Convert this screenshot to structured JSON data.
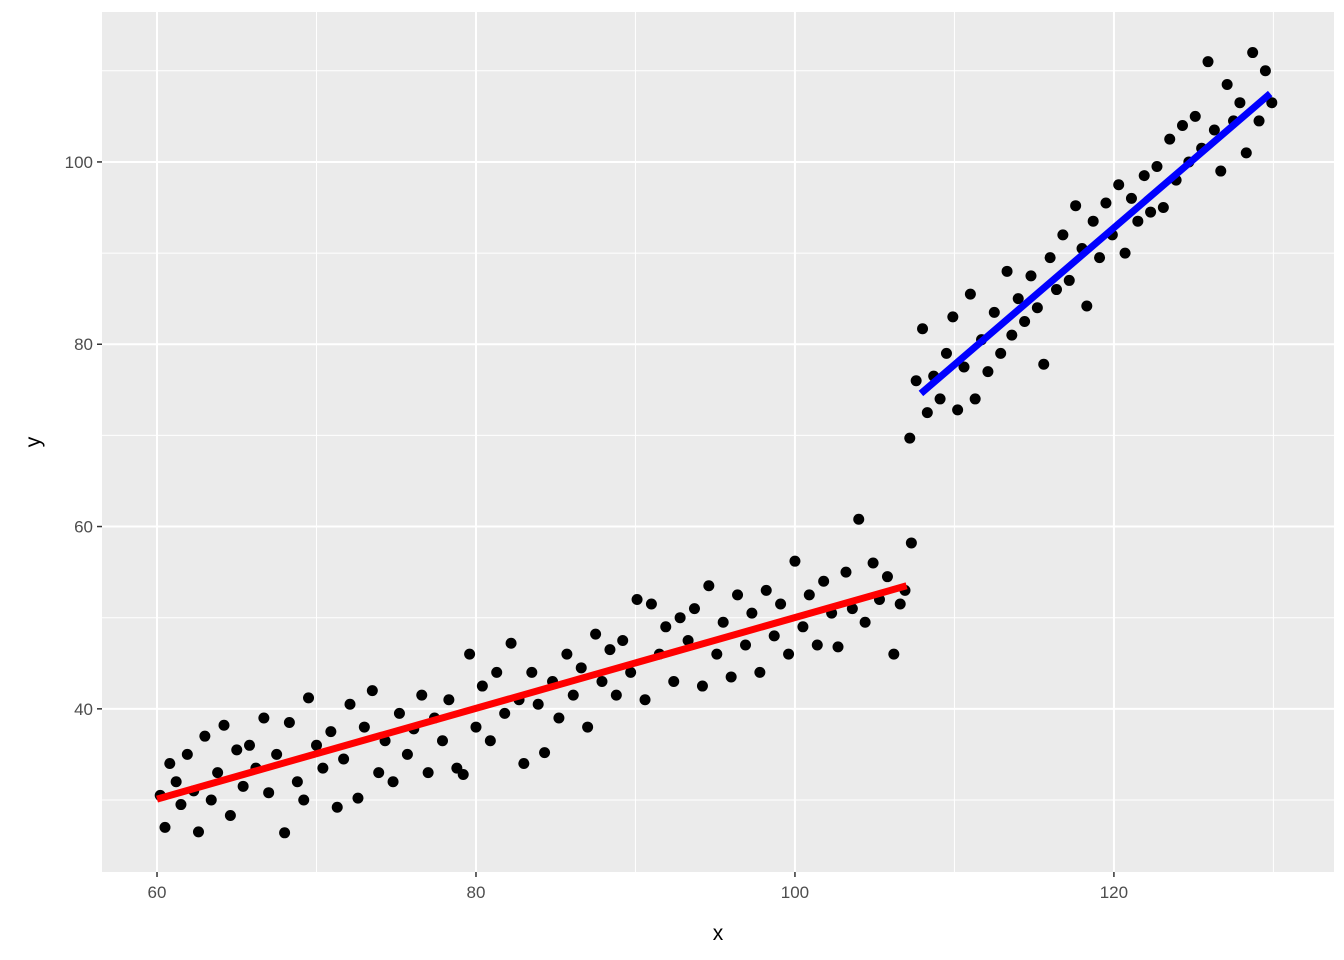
{
  "chart_data": {
    "type": "scatter",
    "x_label": "x",
    "y_label": "y",
    "xlim": [
      56.55,
      133.8
    ],
    "ylim": [
      22.1,
      116.45
    ],
    "xticks": [
      60,
      80,
      100,
      120
    ],
    "yticks": [
      40,
      60,
      80,
      100
    ],
    "xminor": [
      70,
      90,
      110,
      130
    ],
    "yminor": [
      30,
      50,
      70,
      90,
      110
    ],
    "grid": true,
    "panel_color": "#ebebeb",
    "points": {
      "color": "#000000",
      "x": [
        60.2,
        60.5,
        60.8,
        61.2,
        61.5,
        61.9,
        62.3,
        62.6,
        63,
        63.4,
        63.8,
        64.2,
        64.6,
        65,
        65.4,
        65.8,
        66.2,
        66.7,
        67,
        67.5,
        68,
        68.3,
        68.8,
        69.2,
        69.5,
        70,
        70.4,
        70.9,
        71.3,
        71.7,
        72.1,
        72.6,
        73,
        73.5,
        73.9,
        74.3,
        74.8,
        75.2,
        75.7,
        76.1,
        76.6,
        77,
        77.4,
        77.9,
        78.3,
        78.8,
        79.2,
        79.6,
        80,
        80.4,
        80.9,
        81.3,
        81.8,
        82.2,
        82.7,
        83,
        83.5,
        83.9,
        84.3,
        84.8,
        85.2,
        85.7,
        86.1,
        86.6,
        87,
        87.5,
        87.9,
        88.4,
        88.8,
        89.2,
        89.7,
        90.1,
        90.6,
        91,
        91.5,
        91.9,
        92.4,
        92.8,
        93.3,
        93.7,
        94.2,
        94.6,
        95.1,
        95.5,
        96,
        96.4,
        96.9,
        97.3,
        97.8,
        98.2,
        98.7,
        99.1,
        99.6,
        100,
        100.5,
        100.9,
        101.4,
        101.8,
        102.3,
        102.7,
        103.2,
        103.6,
        104,
        104.4,
        104.9,
        105.3,
        105.8,
        106.2,
        106.6,
        106.9,
        107.2,
        107.3,
        107.6,
        108,
        108.3,
        108.7,
        109.1,
        109.5,
        109.9,
        110.2,
        110.6,
        111,
        111.3,
        111.7,
        112.1,
        112.5,
        112.9,
        113.3,
        113.6,
        114,
        114.4,
        114.8,
        115.2,
        115.6,
        116,
        116.4,
        116.8,
        117.2,
        117.6,
        118,
        118.3,
        118.7,
        119.1,
        119.5,
        119.9,
        120.3,
        120.7,
        121.1,
        121.5,
        121.9,
        122.3,
        122.7,
        123.1,
        123.5,
        123.9,
        124.3,
        124.7,
        125.1,
        125.5,
        125.9,
        126.3,
        126.7,
        127.1,
        127.5,
        127.9,
        128.3,
        128.7,
        129.1,
        129.5,
        129.9
      ],
      "y": [
        30.5,
        27,
        34,
        32,
        29.5,
        35,
        31,
        26.5,
        37,
        30,
        33,
        38.2,
        28.3,
        35.5,
        31.5,
        36,
        33.5,
        39,
        30.8,
        35,
        26.4,
        38.5,
        32,
        30,
        41.2,
        36,
        33.5,
        37.5,
        29.2,
        34.5,
        40.5,
        30.2,
        38,
        42,
        33,
        36.5,
        32,
        39.5,
        35,
        37.8,
        41.5,
        33,
        39,
        36.5,
        41,
        33.5,
        32.8,
        46,
        38,
        42.5,
        36.5,
        44,
        39.5,
        47.2,
        41,
        34,
        44,
        40.5,
        35.2,
        43,
        39,
        46,
        41.5,
        44.5,
        38,
        48.2,
        43,
        46.5,
        41.5,
        47.5,
        44,
        52,
        41,
        51.5,
        46,
        49,
        43,
        50,
        47.5,
        51,
        42.5,
        53.5,
        46,
        49.5,
        43.5,
        52.5,
        47,
        50.5,
        44,
        53,
        48,
        51.5,
        46,
        56.2,
        49,
        52.5,
        47,
        54,
        50.5,
        46.8,
        55,
        51,
        60.8,
        49.5,
        56,
        52,
        54.5,
        46,
        51.5,
        53,
        69.7,
        58.2,
        76,
        81.7,
        72.5,
        76.5,
        74,
        79,
        83,
        72.8,
        77.5,
        85.5,
        74,
        80.5,
        77,
        83.5,
        79,
        88,
        81,
        85,
        82.5,
        87.5,
        84,
        77.8,
        89.5,
        86,
        92,
        87,
        95.2,
        90.5,
        84.2,
        93.5,
        89.5,
        95.5,
        92,
        97.5,
        90,
        96,
        93.5,
        98.5,
        94.5,
        99.5,
        95,
        102.5,
        98,
        104,
        100,
        105,
        101.5,
        111,
        103.5,
        99,
        108.5,
        104.5,
        106.5,
        101,
        112,
        104.5,
        110,
        106.5
      ]
    },
    "lines": [
      {
        "color": "#ff0000",
        "x": [
          60,
          107
        ],
        "y": [
          30.1,
          53.5
        ]
      },
      {
        "color": "#0000ff",
        "x": [
          107.9,
          129.8
        ],
        "y": [
          74.6,
          107.5
        ]
      }
    ]
  }
}
